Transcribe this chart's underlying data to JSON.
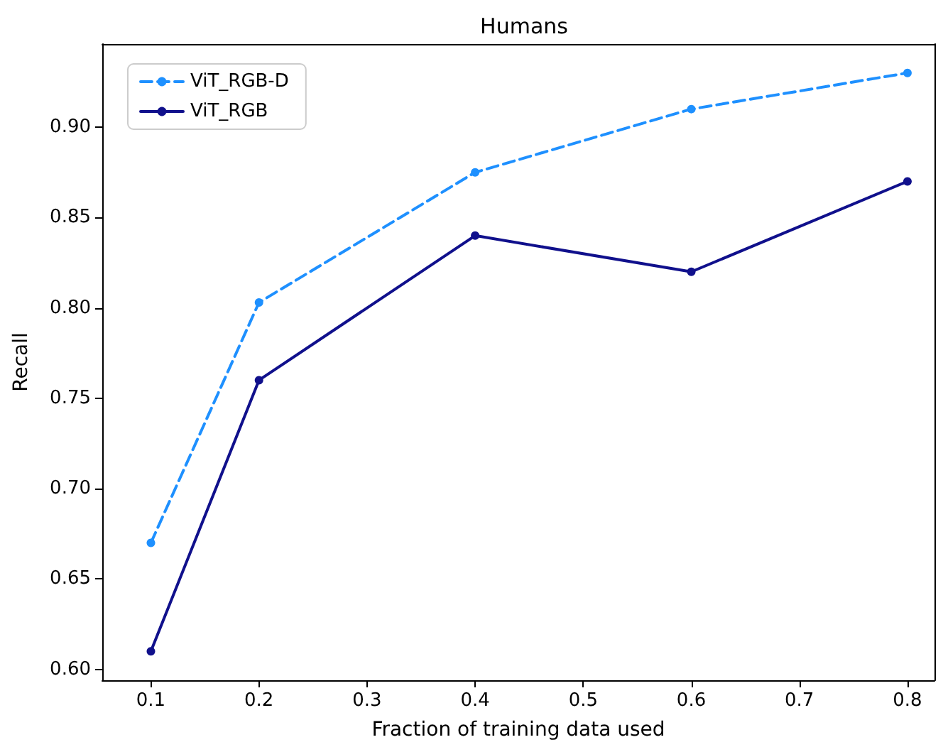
{
  "chart_data": {
    "type": "line",
    "title": "Humans",
    "xlabel": "Fraction of training data used",
    "ylabel": "Recall",
    "x": [
      0.1,
      0.2,
      0.4,
      0.6,
      0.8
    ],
    "series": [
      {
        "name": "ViT_RGB-D",
        "color": "#1e90ff",
        "line_style": "dashed",
        "values": [
          0.67,
          0.803,
          0.875,
          0.91,
          0.93
        ]
      },
      {
        "name": "ViT_RGB",
        "color": "#10108c",
        "line_style": "solid",
        "values": [
          0.61,
          0.76,
          0.84,
          0.82,
          0.87
        ]
      }
    ],
    "xlim": [
      0.055,
      0.825
    ],
    "xticks": [
      0.1,
      0.2,
      0.3,
      0.4,
      0.5,
      0.6,
      0.7,
      0.8
    ],
    "ylim": [
      0.594,
      0.946
    ],
    "yticks": [
      {
        "value": 0.6,
        "label": "0.60"
      },
      {
        "value": 0.65,
        "label": "0.65"
      },
      {
        "value": 0.7,
        "label": "0.70"
      },
      {
        "value": 0.75,
        "label": "0.75"
      },
      {
        "value": 0.8,
        "label": "0.80"
      },
      {
        "value": 0.85,
        "label": "0.85"
      },
      {
        "value": 0.9,
        "label": "0.90"
      }
    ],
    "legend": "top left",
    "marker": "circle",
    "grid": false
  }
}
